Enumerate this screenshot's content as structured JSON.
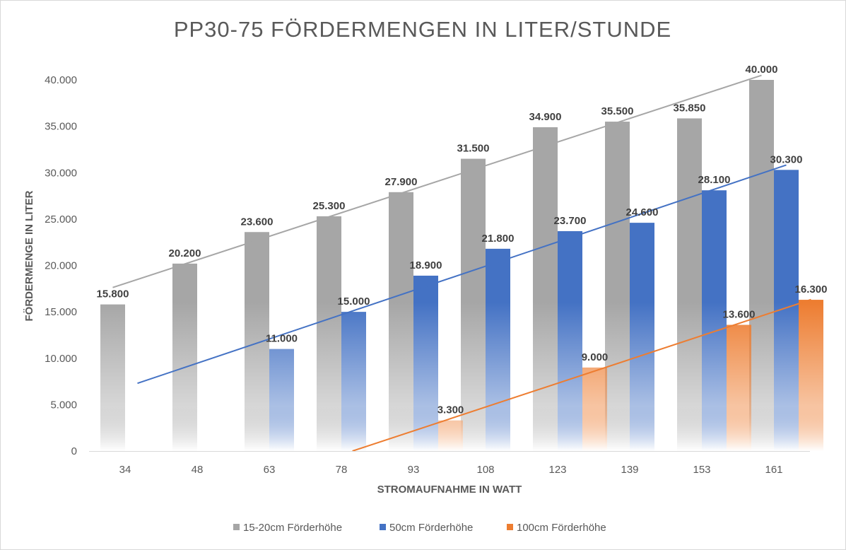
{
  "chart_data": {
    "type": "bar",
    "title": "PP30-75 FÖRDERMENGEN IN LITER/STUNDE",
    "xlabel": "STROMAUFNAHME IN WATT",
    "ylabel": "FÖRDERMENGE IN LITER",
    "categories": [
      "34",
      "48",
      "63",
      "78",
      "93",
      "108",
      "123",
      "139",
      "153",
      "161"
    ],
    "ylim": [
      0,
      40000
    ],
    "yticks": [
      {
        "value": 0,
        "label": "0"
      },
      {
        "value": 5000,
        "label": "5.000"
      },
      {
        "value": 10000,
        "label": "10.000"
      },
      {
        "value": 15000,
        "label": "15.000"
      },
      {
        "value": 20000,
        "label": "20.000"
      },
      {
        "value": 25000,
        "label": "25.000"
      },
      {
        "value": 30000,
        "label": "30.000"
      },
      {
        "value": 35000,
        "label": "35.000"
      },
      {
        "value": 40000,
        "label": "40.000"
      }
    ],
    "gridlines": false,
    "legend_position": "bottom",
    "trendlines": "linear",
    "series": [
      {
        "name": "15-20cm Förderhöhe",
        "color": "#a6a6a6",
        "values": [
          15800,
          20200,
          23600,
          25300,
          27900,
          31500,
          34900,
          35500,
          35850,
          40000
        ],
        "labels": [
          "15.800",
          "20.200",
          "23.600",
          "25.300",
          "27.900",
          "31.500",
          "34.900",
          "35.500",
          "35.850",
          "40.000"
        ]
      },
      {
        "name": "50cm Förderhöhe",
        "color": "#4472c4",
        "values": [
          null,
          null,
          11000,
          15000,
          18900,
          21800,
          23700,
          24600,
          28100,
          30300
        ],
        "labels": [
          "",
          "",
          "11.000",
          "15.000",
          "18.900",
          "21.800",
          "23.700",
          "24.600",
          "28.100",
          "30.300"
        ]
      },
      {
        "name": "100cm Förderhöhe",
        "color": "#ed7d31",
        "values": [
          null,
          null,
          null,
          null,
          3300,
          null,
          9000,
          null,
          13600,
          16300
        ],
        "labels": [
          "",
          "",
          "",
          "",
          "3.300",
          "",
          "9.000",
          "",
          "13.600",
          "16.300"
        ]
      }
    ]
  }
}
